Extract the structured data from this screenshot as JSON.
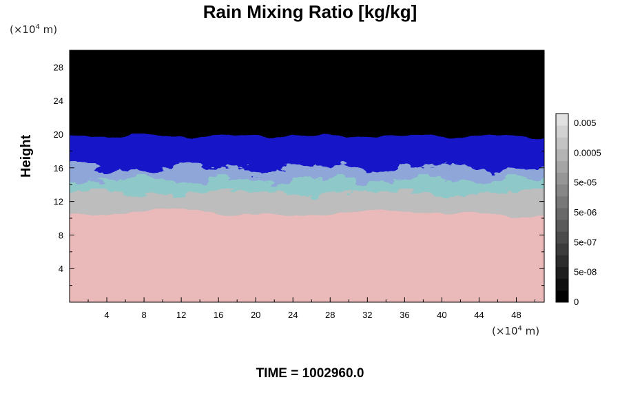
{
  "chart_data": {
    "type": "heatmap",
    "title": "Rain Mixing Ratio [kg/kg]",
    "ylabel": "Height",
    "xlabel": "",
    "x_unit": "(×10⁴ m)",
    "y_unit": "(×10⁴ m)",
    "xlim": [
      0,
      51
    ],
    "ylim": [
      0,
      30
    ],
    "x_ticks": [
      "4",
      "8",
      "12",
      "16",
      "20",
      "24",
      "28",
      "32",
      "36",
      "40",
      "44",
      "48"
    ],
    "y_ticks": [
      "4",
      "8",
      "12",
      "16",
      "20",
      "24",
      "28"
    ],
    "colorbar_labels": [
      "0.005",
      "0.0005",
      "5e-05",
      "5e-06",
      "5e-07",
      "5e-08",
      "0"
    ],
    "layers": [
      {
        "name": "upper",
        "color": "#000000"
      },
      {
        "name": "blue",
        "color": "#1414c8"
      },
      {
        "name": "lightblue",
        "color": "#8fa6d8"
      },
      {
        "name": "cyan",
        "color": "#8ec8c8"
      },
      {
        "name": "gray",
        "color": "#bdbdbd"
      },
      {
        "name": "pink",
        "color": "#eab9b9"
      }
    ]
  },
  "footer": {
    "time_label": "TIME = 1002960.0"
  }
}
